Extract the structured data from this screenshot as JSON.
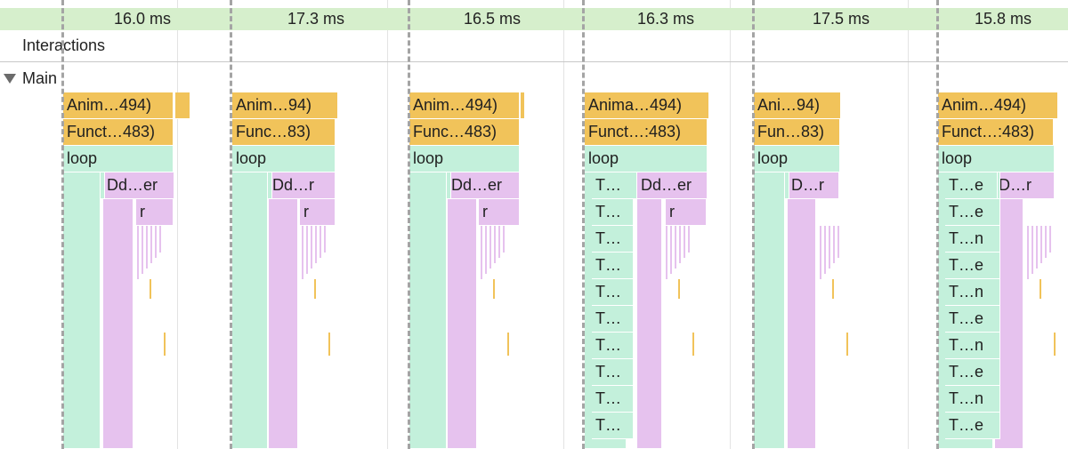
{
  "frames_track": {
    "label_color": "#d6efcc",
    "durations": [
      "16.0 ms",
      "17.3 ms",
      "16.5 ms",
      "16.3 ms",
      "17.5 ms",
      "15.8 ms"
    ]
  },
  "interactions": {
    "label": "Interactions"
  },
  "main": {
    "label": "Main",
    "expand_icon": "triangle-down-icon"
  },
  "colors": {
    "scripting": "#f1c35a",
    "function": "#c3f0db",
    "render": "#e6c2ee"
  },
  "frames": [
    {
      "anim": "Anim…494)",
      "func": "Funct…483)",
      "loop": "loop",
      "dd": "Dd…er",
      "r": "r",
      "t_labels": []
    },
    {
      "anim": "Anim…94)",
      "func": "Func…83)",
      "loop": "loop",
      "dd": "Dd…r",
      "r": "r",
      "t_labels": []
    },
    {
      "anim": "Anim…494)",
      "func": "Func…483)",
      "loop": "loop",
      "dd": "Dd…er",
      "r": "r",
      "t_labels": []
    },
    {
      "anim": "Anima…494)",
      "func": "Funct…:483)",
      "loop": "loop",
      "dd": "Dd…er",
      "r": "r",
      "t_labels": [
        "T…",
        "T…",
        "T…",
        "T…",
        "T…",
        "T…",
        "T…",
        "T…",
        "T…",
        "T…"
      ]
    },
    {
      "anim": "Ani…94)",
      "func": "Fun…83)",
      "loop": "loop",
      "dd": "D…r",
      "r": "",
      "t_labels": []
    },
    {
      "anim": "Anim…494)",
      "func": "Funct…:483)",
      "loop": "loop",
      "dd": "D…r",
      "r": "",
      "t_labels": [
        "T…e",
        "T…e",
        "T…n",
        "T…e",
        "T…n",
        "T…e",
        "T…n",
        "T…e",
        "T…n",
        "T…e"
      ]
    }
  ]
}
